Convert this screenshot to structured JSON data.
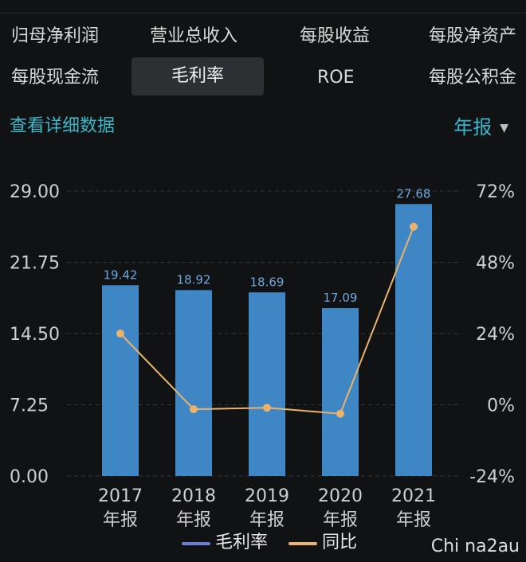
{
  "tabs": [
    {
      "label": "归母净利润",
      "active": false
    },
    {
      "label": "营业总收入",
      "active": false
    },
    {
      "label": "每股收益",
      "active": false
    },
    {
      "label": "每股净资产",
      "active": false
    },
    {
      "label": "每股现金流",
      "active": false
    },
    {
      "label": "毛利率",
      "active": true
    },
    {
      "label": "ROE",
      "active": false
    },
    {
      "label": "每股公积金",
      "active": false
    }
  ],
  "detail_link": "查看详细数据",
  "period_selector": "年报",
  "watermark": "Chi na2au",
  "colors": {
    "bar": "#3f86c4",
    "line": "#e9b36c",
    "legend_bar": "#6a7fd4",
    "accent": "#39b8c9"
  },
  "chart_data": {
    "type": "bar",
    "categories": [
      "2017\n年报",
      "2018\n年报",
      "2019\n年报",
      "2020\n年报",
      "2021\n年报"
    ],
    "category_lines": [
      [
        "2017",
        "年报"
      ],
      [
        "2018",
        "年报"
      ],
      [
        "2019",
        "年报"
      ],
      [
        "2020",
        "年报"
      ],
      [
        "2021",
        "年报"
      ]
    ],
    "series": [
      {
        "name": "毛利率",
        "type": "bar",
        "axis": "left",
        "values": [
          19.42,
          18.92,
          18.69,
          17.09,
          27.68
        ],
        "labels": [
          "19.42",
          "18.92",
          "18.69",
          "17.09",
          "27.68"
        ]
      },
      {
        "name": "同比",
        "type": "line",
        "axis": "right",
        "values": [
          24,
          -1.5,
          -1,
          -3,
          60
        ]
      }
    ],
    "y_left": {
      "min": 0,
      "max": 29,
      "ticks": [
        "0.00",
        "7.25",
        "14.50",
        "21.75",
        "29.00"
      ]
    },
    "y_right": {
      "min": -24,
      "max": 72,
      "ticks": [
        "-24%",
        "0%",
        "24%",
        "48%",
        "72%"
      ]
    },
    "grid": true,
    "legend_position": "bottom"
  }
}
